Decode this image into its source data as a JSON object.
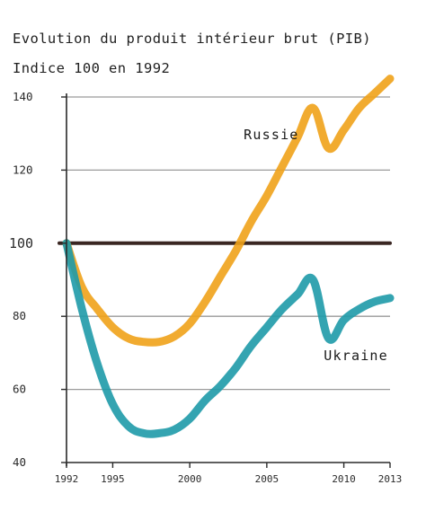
{
  "chart_data": {
    "type": "line",
    "title": "Evolution du produit intérieur brut (PIB)",
    "subtitle": "Indice 100 en 1992",
    "xlabel": "",
    "ylabel": "",
    "xlim": [
      1992,
      2013
    ],
    "ylim": [
      40,
      140
    ],
    "y_ticks": [
      "40",
      "60",
      "80",
      "100",
      "120",
      "140"
    ],
    "x_ticks": [
      "1992",
      "1995",
      "2000",
      "2005",
      "2010",
      "2013"
    ],
    "x_tick_values": [
      1992,
      1995,
      2000,
      2005,
      2010,
      2013
    ],
    "y_tick_values": [
      40,
      60,
      80,
      100,
      120,
      140
    ],
    "grid": true,
    "reference_line": 100,
    "series": [
      {
        "name": "Russie",
        "color": "#f0a21a",
        "x": [
          1992,
          1993,
          1994,
          1995,
          1996,
          1997,
          1998,
          1999,
          2000,
          2001,
          2002,
          2003,
          2004,
          2005,
          2006,
          2007,
          2008,
          2009,
          2010,
          2011,
          2012,
          2013
        ],
        "values": [
          100,
          88,
          82,
          77,
          74,
          73,
          73,
          74.5,
          78,
          84,
          91,
          98,
          106,
          113,
          121,
          129,
          137,
          126,
          131,
          137,
          141,
          145
        ]
      },
      {
        "name": "Ukraine",
        "color": "#1e9aa8",
        "x": [
          1992,
          1993,
          1994,
          1995,
          1996,
          1997,
          1998,
          1999,
          2000,
          2001,
          2002,
          2003,
          2004,
          2005,
          2006,
          2007,
          2008,
          2009,
          2010,
          2011,
          2012,
          2013
        ],
        "values": [
          100,
          82,
          67,
          56,
          50,
          48,
          48,
          49,
          52,
          57,
          61,
          66,
          72,
          77,
          82,
          86,
          90,
          74,
          79,
          82,
          84,
          85
        ]
      }
    ],
    "reference_color": "#3a2622",
    "grid_color": "#9a9a9a"
  }
}
